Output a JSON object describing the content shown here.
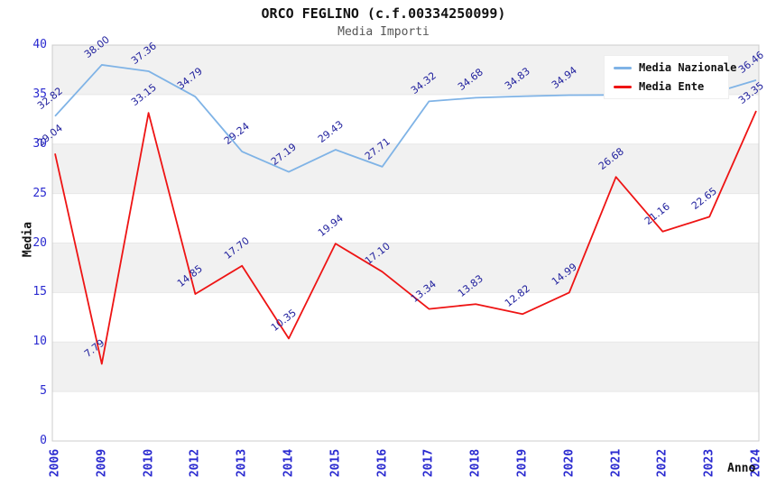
{
  "header": {
    "title": "ORCO FEGLINO (c.f.00334250099)",
    "subtitle": "Media Importi"
  },
  "axes": {
    "y_title": "Media",
    "x_title": "Anno"
  },
  "palette": {
    "nazionale_line": "#7fb3e6",
    "ente_line": "#ee1414",
    "axis_tick_text": "#2a2ad0",
    "data_label_text": "#22229e",
    "band_gray": "#f1f1f1",
    "gridline": "#e7e7e7",
    "plot_border": "#cccccc",
    "title_text": "#111111",
    "subtitle_text": "#555555"
  },
  "chart_data": {
    "type": "line",
    "title": "ORCO FEGLINO (c.f.00334250099)",
    "subtitle": "Media Importi",
    "xlabel": "Anno",
    "ylabel": "Media",
    "ylim": [
      0,
      40
    ],
    "y_ticks": [
      0,
      5,
      10,
      15,
      20,
      25,
      30,
      35,
      40
    ],
    "grid": "horizontal-bands-alternating",
    "legend_position": "top-right-inside",
    "categories": [
      "2006",
      "2009",
      "2010",
      "2012",
      "2013",
      "2014",
      "2015",
      "2016",
      "2017",
      "2018",
      "2019",
      "2020",
      "2021",
      "2022",
      "2023",
      "2024"
    ],
    "series": [
      {
        "name": "Media Nazionale",
        "color": "#7fb3e6",
        "values": [
          32.82,
          38.0,
          37.36,
          34.79,
          29.24,
          27.19,
          29.43,
          27.71,
          34.32,
          34.68,
          34.83,
          34.94,
          34.96,
          34.99,
          35.04,
          36.46
        ],
        "labels": [
          "32.82",
          "38.00",
          "37.36",
          "34.79",
          "29.24",
          "27.19",
          "29.43",
          "27.71",
          "34.32",
          "34.68",
          "34.83",
          "34.94",
          null,
          null,
          null,
          "36.46"
        ],
        "note": "labels for 2021-2023 hidden behind legend box"
      },
      {
        "name": "Media Ente",
        "color": "#ee1414",
        "values": [
          29.04,
          7.79,
          33.15,
          14.85,
          17.7,
          10.35,
          19.94,
          17.1,
          13.34,
          13.83,
          12.82,
          14.99,
          26.68,
          21.16,
          22.65,
          33.35
        ],
        "labels": [
          "29.04",
          "7.79",
          "33.15",
          "14.85",
          "17.70",
          "10.35",
          "19.94",
          "17.10",
          "13.34",
          "13.83",
          "12.82",
          "14.99",
          "26.68",
          "21.16",
          "22.65",
          "33.35"
        ]
      }
    ]
  }
}
